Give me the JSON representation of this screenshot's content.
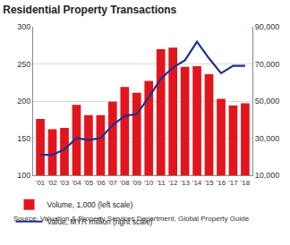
{
  "chart_data": {
    "type": "bar",
    "title": "Residential Property Transactions",
    "categories": [
      "'01",
      "'02",
      "'03",
      "'04",
      "'05",
      "'06",
      "'07",
      "'08",
      "'09",
      "'10",
      "'11",
      "'12",
      "'13",
      "'14",
      "'15",
      "'16",
      "'17",
      "'18"
    ],
    "series": [
      {
        "name": "Volume, 1,000 (left scale)",
        "type": "bar",
        "color": "#e3151c",
        "values": [
          176,
          162,
          164,
          195,
          181,
          181,
          199,
          219,
          211,
          227,
          270,
          272,
          246,
          247,
          236,
          203,
          194,
          197
        ]
      },
      {
        "name": "Value, MYR million (right scale)",
        "type": "line",
        "axis": "y2",
        "color": "#1f2f8c",
        "values": [
          21000,
          21000,
          24000,
          30000,
          29000,
          30000,
          37000,
          42000,
          43000,
          52000,
          62000,
          68000,
          72000,
          82000,
          73000,
          65000,
          69000,
          69000
        ]
      }
    ],
    "ylim": [
      100,
      300
    ],
    "yticks": [
      100,
      150,
      200,
      250,
      300
    ],
    "y2lim": [
      10000,
      90000
    ],
    "y2ticks": [
      {
        "value": 10000,
        "label": "10,000"
      },
      {
        "value": 30000,
        "label": "30,000"
      },
      {
        "value": 50000,
        "label": "50,000"
      },
      {
        "value": 70000,
        "label": "70,000"
      },
      {
        "value": 90000,
        "label": "90,000"
      }
    ],
    "grid": true,
    "legend": "bottom",
    "annotations": [
      "Source: Valuation & Property Services Department, Global Property Guide"
    ]
  }
}
